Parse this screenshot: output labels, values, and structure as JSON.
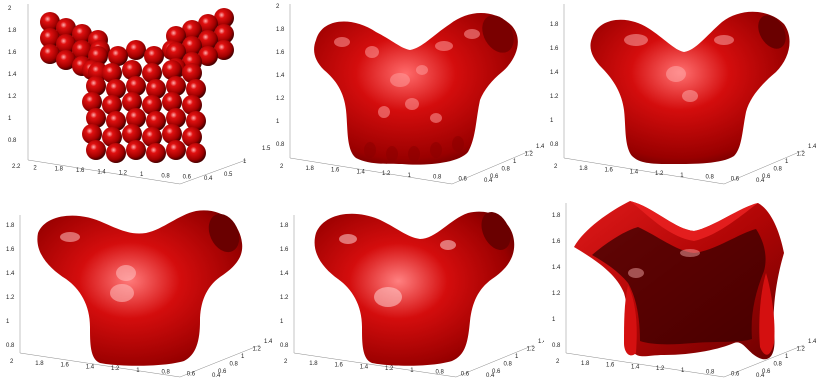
{
  "panels": [
    {
      "name": "spheres",
      "zticks": [
        "2",
        "1.8",
        "1.6",
        "1.4",
        "1.2",
        "1",
        "0.8"
      ],
      "xticks": [
        "2.2",
        "2",
        "1.8",
        "1.6",
        "1.4",
        "1.2",
        "1",
        "0.8",
        "0.6",
        "0.4"
      ],
      "yticks": [
        "0.5",
        "1",
        "1.5"
      ]
    },
    {
      "name": "bumpy-surface",
      "zticks": [
        "2",
        "1.8",
        "1.6",
        "1.4",
        "1.2",
        "1",
        "0.8"
      ],
      "xticks": [
        "2",
        "1.8",
        "1.6",
        "1.4",
        "1.2",
        "1",
        "0.8",
        "0.6",
        "0.4"
      ],
      "yticks": [
        "0.6",
        "0.8",
        "1",
        "1.2",
        "1.4"
      ]
    },
    {
      "name": "smooth-surface-1",
      "zticks": [
        "1.8",
        "1.6",
        "1.4",
        "1.2",
        "1",
        "0.8"
      ],
      "xticks": [
        "2",
        "1.8",
        "1.6",
        "1.4",
        "1.2",
        "1",
        "0.8",
        "0.6",
        "0.4"
      ],
      "yticks": [
        "0.6",
        "0.8",
        "1",
        "1.2",
        "1.4"
      ]
    },
    {
      "name": "smooth-surface-2",
      "zticks": [
        "1.8",
        "1.6",
        "1.4",
        "1.2",
        "1",
        "0.8"
      ],
      "xticks": [
        "2",
        "1.8",
        "1.6",
        "1.4",
        "1.2",
        "1",
        "0.8",
        "0.6",
        "0.4"
      ],
      "yticks": [
        "0.6",
        "0.8",
        "1",
        "1.2",
        "1.4"
      ]
    },
    {
      "name": "smooth-surface-3",
      "zticks": [
        "1.8",
        "1.6",
        "1.4",
        "1.2",
        "1",
        "0.8"
      ],
      "xticks": [
        "2",
        "1.8",
        "1.6",
        "1.4",
        "1.2",
        "1",
        "0.8",
        "0.6",
        "0.4"
      ],
      "yticks": [
        "0.6",
        "0.8",
        "1",
        "1.2",
        "1.4"
      ]
    },
    {
      "name": "thin-shell",
      "zticks": [
        "1.8",
        "1.6",
        "1.4",
        "1.2",
        "1",
        "0.8"
      ],
      "xticks": [
        "2",
        "1.8",
        "1.6",
        "1.4",
        "1.2",
        "1",
        "0.8",
        "0.6",
        "0.4"
      ],
      "yticks": [
        "0.6",
        "0.8",
        "1",
        "1.2",
        "1.4"
      ]
    }
  ],
  "colors": {
    "surface": "#cc0a0a",
    "surface_dark": "#5a0000",
    "highlight": "#ffd0d0",
    "axis": "#8a8a8a"
  }
}
